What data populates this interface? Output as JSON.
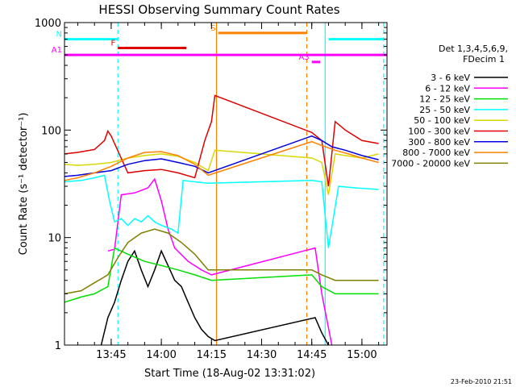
{
  "chart_data": {
    "type": "line",
    "title": "HESSI Observing Summary Count Rates",
    "xlabel": "Start Time (18-Aug-02 13:31:02)",
    "ylabel": "Count Rate (s⁻¹ detector⁻¹)",
    "yscale": "log",
    "xlim": [
      "13:31:02",
      "15:07:30"
    ],
    "ylim": [
      1,
      1000
    ],
    "x_tick_labels": [
      "13:45",
      "14:00",
      "14:15",
      "14:30",
      "14:45",
      "15:00"
    ],
    "y_tick_labels": [
      "1",
      "10",
      "100",
      "1000"
    ],
    "footer_date": "23-Feb-2010 21:51",
    "legend": {
      "position": "right",
      "header_line1": "Det 1,3,4,5,6,9,",
      "header_line2": "FDecim 1",
      "entries": [
        {
          "label": "3 - 6 keV",
          "color": "#000000"
        },
        {
          "label": "6 - 12 keV",
          "color": "#ff00ff"
        },
        {
          "label": "12 - 25 keV",
          "color": "#00e000"
        },
        {
          "label": "25 - 50 keV",
          "color": "#00ffff"
        },
        {
          "label": "50 - 100 keV",
          "color": "#d8d800"
        },
        {
          "label": "100 - 300 keV",
          "color": "#e00000"
        },
        {
          "label": "300 - 800 keV",
          "color": "#0000e0"
        },
        {
          "label": "800 - 7000 keV",
          "color": "#ff8000"
        },
        {
          "label": "7000 - 20000 keV",
          "color": "#808000"
        }
      ]
    },
    "flag_bars": [
      {
        "label": "N",
        "color": "#00ffff",
        "y": 700,
        "segments": [
          [
            "13:31:02",
            "13:47:00"
          ],
          [
            "14:50:00",
            "15:06:30"
          ]
        ]
      },
      {
        "label": "F",
        "color": "#e00000",
        "y": 580,
        "segments": [
          [
            "13:47:00",
            "14:07:30"
          ]
        ]
      },
      {
        "label": "S",
        "color": "#ff8000",
        "y": 800,
        "segments": [
          [
            "14:17:00",
            "14:43:30"
          ]
        ]
      },
      {
        "label": "A1",
        "color": "#ff00ff",
        "y": 500,
        "segments": [
          [
            "13:31:02",
            "15:07:30"
          ]
        ]
      },
      {
        "label": "A3",
        "color": "#ff00ff",
        "y": 430,
        "segments": [
          [
            "14:45:00",
            "14:47:30"
          ]
        ]
      }
    ],
    "vertical_markers": [
      {
        "x": "13:47:00",
        "color": "#00ffff",
        "style": "dashed"
      },
      {
        "x": "14:16:30",
        "color": "#ff8000",
        "style": "solid"
      },
      {
        "x": "14:43:30",
        "color": "#ff8000",
        "style": "dashed"
      },
      {
        "x": "14:49:00",
        "color": "#00ffff",
        "style": "solid"
      },
      {
        "x": "15:06:30",
        "color": "#00ffff",
        "style": "dashed"
      }
    ],
    "series": [
      {
        "name": "3 - 6 keV",
        "color": "#000000",
        "points": [
          [
            "13:42:00",
            1.0
          ],
          [
            "13:44:00",
            1.8
          ],
          [
            "13:46:00",
            2.5
          ],
          [
            "13:48:00",
            4.0
          ],
          [
            "13:50:00",
            6.0
          ],
          [
            "13:52:00",
            7.5
          ],
          [
            "13:54:00",
            5.0
          ],
          [
            "13:56:00",
            3.5
          ],
          [
            "13:58:00",
            5.0
          ],
          [
            "14:00:00",
            7.5
          ],
          [
            "14:02:00",
            5.5
          ],
          [
            "14:04:00",
            4.0
          ],
          [
            "14:06:00",
            3.5
          ],
          [
            "14:08:00",
            2.5
          ],
          [
            "14:10:00",
            1.8
          ],
          [
            "14:12:00",
            1.4
          ],
          [
            "14:14:00",
            1.2
          ],
          [
            "14:16:00",
            1.1
          ],
          [
            "14:46:00",
            1.8
          ],
          [
            "14:48:00",
            1.3
          ],
          [
            "14:50:00",
            1.0
          ]
        ]
      },
      {
        "name": "6 - 12 keV",
        "color": "#ff00ff",
        "points": [
          [
            "13:44:00",
            7.5
          ],
          [
            "13:46:00",
            7.8
          ],
          [
            "13:48:00",
            25
          ],
          [
            "13:52:00",
            26
          ],
          [
            "13:56:00",
            29
          ],
          [
            "13:58:00",
            35
          ],
          [
            "14:00:00",
            22
          ],
          [
            "14:02:00",
            12
          ],
          [
            "14:04:00",
            8.0
          ],
          [
            "14:08:00",
            6.0
          ],
          [
            "14:12:00",
            5.0
          ],
          [
            "14:15:00",
            4.5
          ],
          [
            "14:46:00",
            8.0
          ],
          [
            "14:48:00",
            3.0
          ],
          [
            "14:51:00",
            1.0
          ]
        ]
      },
      {
        "name": "12 - 25 keV",
        "color": "#00e000",
        "points": [
          [
            "13:31:02",
            2.5
          ],
          [
            "13:36:00",
            2.8
          ],
          [
            "13:40:00",
            3.0
          ],
          [
            "13:44:00",
            3.5
          ],
          [
            "13:46:00",
            8.0
          ],
          [
            "13:50:00",
            7.0
          ],
          [
            "13:55:00",
            6.0
          ],
          [
            "14:00:00",
            5.5
          ],
          [
            "14:05:00",
            5.0
          ],
          [
            "14:10:00",
            4.5
          ],
          [
            "14:15:00",
            4.0
          ],
          [
            "14:45:00",
            4.5
          ],
          [
            "14:48:00",
            3.5
          ],
          [
            "14:52:00",
            3.0
          ],
          [
            "14:58:00",
            3.0
          ],
          [
            "15:05:00",
            3.0
          ]
        ]
      },
      {
        "name": "25 - 50 keV",
        "color": "#00ffff",
        "points": [
          [
            "13:31:02",
            33
          ],
          [
            "13:36:00",
            34
          ],
          [
            "13:40:00",
            36
          ],
          [
            "13:43:00",
            38
          ],
          [
            "13:44:30",
            22
          ],
          [
            "13:46:00",
            14
          ],
          [
            "13:48:00",
            15
          ],
          [
            "13:50:00",
            13
          ],
          [
            "13:52:00",
            15
          ],
          [
            "13:54:00",
            14
          ],
          [
            "13:56:00",
            16
          ],
          [
            "13:58:00",
            14
          ],
          [
            "14:00:00",
            13
          ],
          [
            "14:03:00",
            12
          ],
          [
            "14:05:00",
            11
          ],
          [
            "14:06:30",
            34
          ],
          [
            "14:10:00",
            33
          ],
          [
            "14:14:00",
            32
          ],
          [
            "14:45:00",
            34
          ],
          [
            "14:48:00",
            33
          ],
          [
            "14:50:00",
            8.0
          ],
          [
            "14:53:00",
            30
          ],
          [
            "14:58:00",
            29
          ],
          [
            "15:05:00",
            28
          ]
        ]
      },
      {
        "name": "50 - 100 keV",
        "color": "#d8d800",
        "points": [
          [
            "13:31:02",
            48
          ],
          [
            "13:35:00",
            47
          ],
          [
            "13:40:00",
            48
          ],
          [
            "13:45:00",
            50
          ],
          [
            "13:50:00",
            55
          ],
          [
            "13:55:00",
            58
          ],
          [
            "14:00:00",
            60
          ],
          [
            "14:05:00",
            57
          ],
          [
            "14:10:00",
            50
          ],
          [
            "14:14:00",
            42
          ],
          [
            "14:16:00",
            65
          ],
          [
            "14:45:00",
            55
          ],
          [
            "14:48:00",
            50
          ],
          [
            "14:50:00",
            25
          ],
          [
            "14:52:00",
            60
          ],
          [
            "14:55:00",
            58
          ],
          [
            "15:00:00",
            55
          ],
          [
            "15:05:00",
            60
          ]
        ]
      },
      {
        "name": "100 - 300 keV",
        "color": "#e00000",
        "points": [
          [
            "13:31:02",
            60
          ],
          [
            "13:35:00",
            62
          ],
          [
            "13:40:00",
            66
          ],
          [
            "13:43:00",
            80
          ],
          [
            "13:44:00",
            98
          ],
          [
            "13:45:00",
            88
          ],
          [
            "13:50:00",
            40
          ],
          [
            "13:55:00",
            42
          ],
          [
            "14:00:00",
            43
          ],
          [
            "14:05:00",
            40
          ],
          [
            "14:10:00",
            36
          ],
          [
            "14:13:00",
            80
          ],
          [
            "14:15:00",
            120
          ],
          [
            "14:16:00",
            210
          ],
          [
            "14:45:00",
            95
          ],
          [
            "14:48:00",
            80
          ],
          [
            "14:50:00",
            30
          ],
          [
            "14:52:00",
            120
          ],
          [
            "14:55:00",
            100
          ],
          [
            "15:00:00",
            80
          ],
          [
            "15:05:00",
            75
          ]
        ]
      },
      {
        "name": "300 - 800 keV",
        "color": "#0000e0",
        "points": [
          [
            "13:31:02",
            37
          ],
          [
            "13:35:00",
            38
          ],
          [
            "13:40:00",
            40
          ],
          [
            "13:45:00",
            42
          ],
          [
            "13:50:00",
            48
          ],
          [
            "13:55:00",
            52
          ],
          [
            "14:00:00",
            54
          ],
          [
            "14:05:00",
            50
          ],
          [
            "14:10:00",
            46
          ],
          [
            "14:14:00",
            40
          ],
          [
            "14:45:00",
            88
          ],
          [
            "14:48:00",
            80
          ],
          [
            "14:51:00",
            70
          ],
          [
            "14:55:00",
            65
          ],
          [
            "15:00:00",
            58
          ],
          [
            "15:05:00",
            53
          ]
        ]
      },
      {
        "name": "800 - 7000 keV",
        "color": "#ff8000",
        "points": [
          [
            "13:31:02",
            34
          ],
          [
            "13:35:00",
            36
          ],
          [
            "13:40:00",
            40
          ],
          [
            "13:45:00",
            46
          ],
          [
            "13:50:00",
            55
          ],
          [
            "13:55:00",
            62
          ],
          [
            "14:00:00",
            63
          ],
          [
            "14:05:00",
            58
          ],
          [
            "14:10:00",
            48
          ],
          [
            "14:14:00",
            38
          ],
          [
            "14:45:00",
            78
          ],
          [
            "14:48:00",
            72
          ],
          [
            "14:52:00",
            65
          ],
          [
            "14:56:00",
            60
          ],
          [
            "15:00:00",
            55
          ],
          [
            "15:05:00",
            50
          ]
        ]
      },
      {
        "name": "7000 - 20000 keV",
        "color": "#808000",
        "points": [
          [
            "13:31:02",
            3.0
          ],
          [
            "13:36:00",
            3.2
          ],
          [
            "13:40:00",
            3.8
          ],
          [
            "13:44:00",
            4.5
          ],
          [
            "13:47:00",
            6.5
          ],
          [
            "13:50:00",
            9.0
          ],
          [
            "13:54:00",
            11
          ],
          [
            "13:58:00",
            12
          ],
          [
            "14:02:00",
            11
          ],
          [
            "14:06:00",
            9.0
          ],
          [
            "14:10:00",
            7.0
          ],
          [
            "14:14:00",
            5.0
          ],
          [
            "14:45:00",
            5.0
          ],
          [
            "14:48:00",
            4.5
          ],
          [
            "14:52:00",
            4.0
          ],
          [
            "14:58:00",
            4.0
          ],
          [
            "15:05:00",
            4.0
          ]
        ]
      }
    ]
  }
}
